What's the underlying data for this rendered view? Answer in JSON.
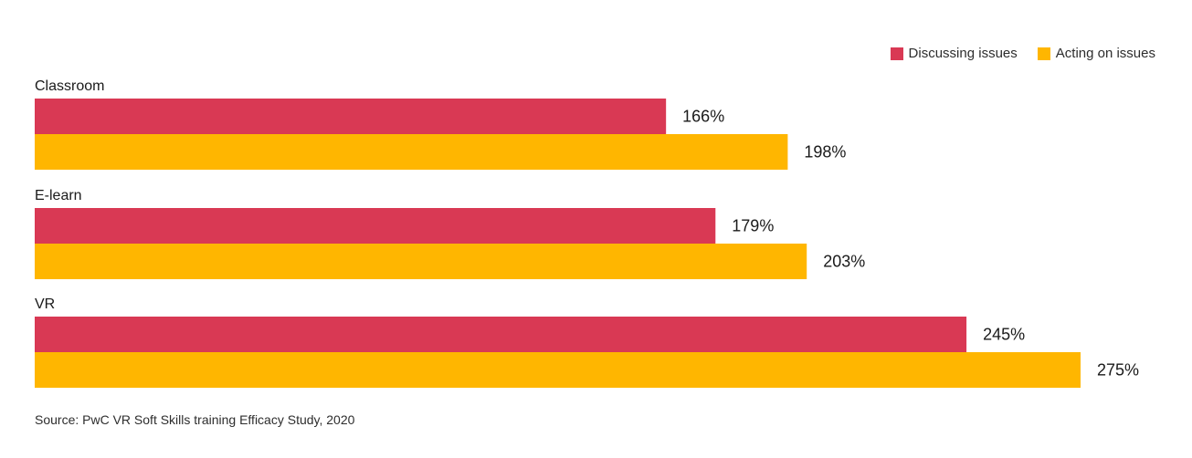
{
  "colors": {
    "discussing": "#d93954",
    "acting": "#ffb600",
    "text": "#1a1a1a"
  },
  "chart_data": {
    "type": "bar",
    "orientation": "horizontal",
    "categories": [
      "Classroom",
      "E-learn",
      "VR"
    ],
    "series": [
      {
        "name": "Discussing issues",
        "values": [
          166,
          179,
          245
        ],
        "labels": [
          "166%",
          "179%",
          "245%"
        ]
      },
      {
        "name": "Acting on issues",
        "values": [
          198,
          203,
          275
        ],
        "labels": [
          "198%",
          "203%",
          "275%"
        ]
      }
    ],
    "unit": "%",
    "xlim": [
      0,
      275
    ],
    "grid": false,
    "legend_position": "top-right"
  },
  "source": "Source: PwC VR Soft Skills training Efficacy Study, 2020"
}
